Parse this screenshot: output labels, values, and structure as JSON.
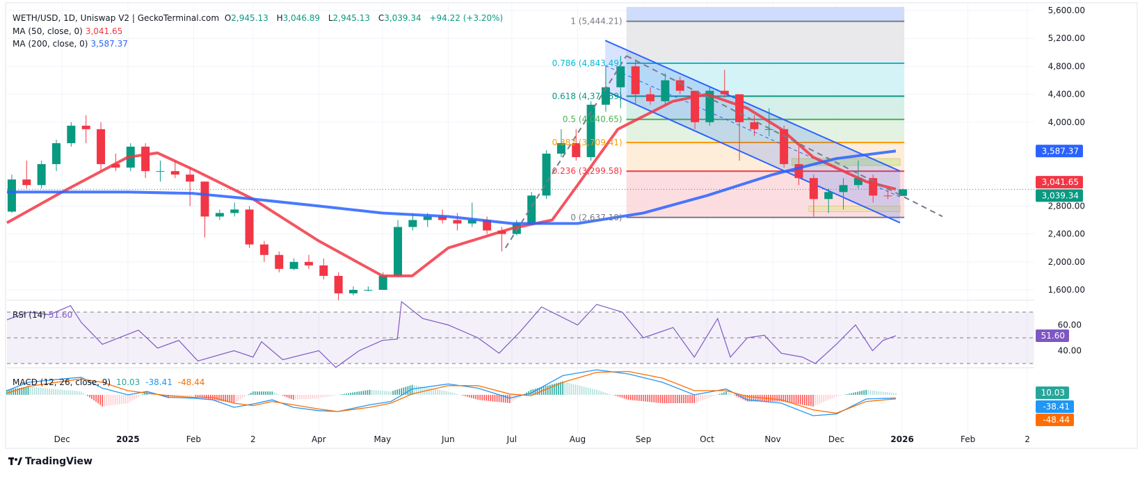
{
  "header": {
    "symbol": "WETH/USD, 1D, Uniswap V2 | GeckoTerminal.com",
    "o_label": "O",
    "o": "2,945.13",
    "h_label": "H",
    "h": "3,046.89",
    "l_label": "L",
    "l": "2,945.13",
    "c_label": "C",
    "c": "3,039.34",
    "change": "+94.22 (+3.20%)",
    "ma50_label": "MA (50, close, 0)",
    "ma50_value": "3,041.65",
    "ma200_label": "MA (200, close, 0)",
    "ma200_value": "3,587.37",
    "rsi_label": "RSI (14)",
    "rsi_value": "51.60",
    "macd_label": "MACD (12, 26, close, 9)",
    "macd_hist": "10.03",
    "macd_value": "-38.41",
    "macd_signal": "-48.44"
  },
  "branding": {
    "logo_text": "TradingView"
  },
  "colors": {
    "up": "#089981",
    "down": "#f23645",
    "ma50": "#f23645",
    "ma200": "#2962ff",
    "rsi": "#7e57c2",
    "macd": "#2196f3",
    "signal": "#ff6d00",
    "channel": "#2962ff"
  },
  "chart_data": {
    "type": "candlestick",
    "title": "WETH/USD, 1D, Uniswap V2 | GeckoTerminal.com",
    "ylim": [
      1400,
      5650
    ],
    "price_ticks": [
      "5,600.00",
      "5,200.00",
      "4,800.00",
      "4,400.00",
      "4,000.00",
      "2,800.00",
      "2,400.00",
      "2,000.00",
      "1,600.00"
    ],
    "price_tick_values": [
      5600,
      5200,
      4800,
      4400,
      4000,
      2800,
      2400,
      2000,
      1600
    ],
    "time_ticks": [
      {
        "date": "2024-12-01",
        "label": "Dec",
        "bold": false
      },
      {
        "date": "2025-01-01",
        "label": "2025",
        "bold": true
      },
      {
        "date": "2025-02-01",
        "label": "Feb",
        "bold": false
      },
      {
        "date": "2025-03-01",
        "label": "2",
        "bold": false
      },
      {
        "date": "2025-04-01",
        "label": "Apr",
        "bold": false
      },
      {
        "date": "2025-05-01",
        "label": "May",
        "bold": false
      },
      {
        "date": "2025-06-01",
        "label": "Jun",
        "bold": false
      },
      {
        "date": "2025-07-01",
        "label": "Jul",
        "bold": false
      },
      {
        "date": "2025-08-01",
        "label": "Aug",
        "bold": false
      },
      {
        "date": "2025-09-01",
        "label": "Sep",
        "bold": false
      },
      {
        "date": "2025-10-01",
        "label": "Oct",
        "bold": false
      },
      {
        "date": "2025-11-01",
        "label": "Nov",
        "bold": false
      },
      {
        "date": "2025-12-01",
        "label": "Dec",
        "bold": false
      },
      {
        "date": "2026-01-01",
        "label": "2026",
        "bold": true
      },
      {
        "date": "2026-02-01",
        "label": "Feb",
        "bold": false
      },
      {
        "date": "2026-03-01",
        "label": "2",
        "bold": false
      }
    ],
    "candles": [
      [
        "2024-11-04",
        2720,
        3250,
        2700,
        3180
      ],
      [
        "2024-11-11",
        3180,
        3450,
        3050,
        3100
      ],
      [
        "2024-11-18",
        3100,
        3450,
        3050,
        3400
      ],
      [
        "2024-11-25",
        3400,
        3750,
        3300,
        3700
      ],
      [
        "2024-12-02",
        3700,
        4000,
        3650,
        3950
      ],
      [
        "2024-12-09",
        3950,
        4100,
        3700,
        3900
      ],
      [
        "2024-12-16",
        3900,
        4000,
        3300,
        3400
      ],
      [
        "2024-12-23",
        3400,
        3550,
        3300,
        3350
      ],
      [
        "2024-12-30",
        3350,
        3700,
        3300,
        3650
      ],
      [
        "2025-01-06",
        3650,
        3700,
        3200,
        3300
      ],
      [
        "2025-01-13",
        3300,
        3450,
        3150,
        3300
      ],
      [
        "2025-01-20",
        3300,
        3450,
        3200,
        3250
      ],
      [
        "2025-01-27",
        3250,
        3350,
        2800,
        3150
      ],
      [
        "2025-02-03",
        3150,
        3150,
        2350,
        2650
      ],
      [
        "2025-02-10",
        2650,
        2750,
        2600,
        2700
      ],
      [
        "2025-02-17",
        2700,
        2850,
        2650,
        2750
      ],
      [
        "2025-02-24",
        2750,
        2800,
        2200,
        2250
      ],
      [
        "2025-03-03",
        2250,
        2300,
        2000,
        2100
      ],
      [
        "2025-03-10",
        2100,
        2150,
        1850,
        1900
      ],
      [
        "2025-03-17",
        1900,
        2050,
        1880,
        2000
      ],
      [
        "2025-03-24",
        2000,
        2100,
        1900,
        1950
      ],
      [
        "2025-03-31",
        1950,
        2050,
        1750,
        1800
      ],
      [
        "2025-04-07",
        1800,
        1850,
        1450,
        1550
      ],
      [
        "2025-04-14",
        1550,
        1650,
        1520,
        1600
      ],
      [
        "2025-04-21",
        1600,
        1650,
        1580,
        1600
      ],
      [
        "2025-04-28",
        1600,
        1850,
        1600,
        1800
      ],
      [
        "2025-05-05",
        1800,
        2600,
        1780,
        2500
      ],
      [
        "2025-05-12",
        2500,
        2700,
        2450,
        2600
      ],
      [
        "2025-05-19",
        2600,
        2700,
        2500,
        2650
      ],
      [
        "2025-05-26",
        2650,
        2750,
        2550,
        2600
      ],
      [
        "2025-06-02",
        2600,
        2700,
        2450,
        2550
      ],
      [
        "2025-06-09",
        2550,
        2850,
        2500,
        2600
      ],
      [
        "2025-06-16",
        2600,
        2650,
        2400,
        2450
      ],
      [
        "2025-06-23",
        2450,
        2500,
        2150,
        2400
      ],
      [
        "2025-06-30",
        2400,
        2600,
        2380,
        2550
      ],
      [
        "2025-07-07",
        2550,
        3000,
        2520,
        2950
      ],
      [
        "2025-07-14",
        2950,
        3600,
        2900,
        3550
      ],
      [
        "2025-07-21",
        3550,
        3900,
        3500,
        3700
      ],
      [
        "2025-07-28",
        3700,
        3900,
        3450,
        3500
      ],
      [
        "2025-08-04",
        3500,
        4300,
        3450,
        4250
      ],
      [
        "2025-08-11",
        4250,
        4800,
        4150,
        4500
      ],
      [
        "2025-08-18",
        4500,
        4950,
        4200,
        4800
      ],
      [
        "2025-08-25",
        4800,
        4900,
        4250,
        4400
      ],
      [
        "2025-09-01",
        4400,
        4500,
        4250,
        4300
      ],
      [
        "2025-09-08",
        4300,
        4700,
        4250,
        4600
      ],
      [
        "2025-09-15",
        4600,
        4650,
        4400,
        4450
      ],
      [
        "2025-09-22",
        4450,
        4450,
        3900,
        4000
      ],
      [
        "2025-09-29",
        4000,
        4500,
        3950,
        4450
      ],
      [
        "2025-10-06",
        4450,
        4750,
        4350,
        4400
      ],
      [
        "2025-10-13",
        4400,
        4400,
        3450,
        4000
      ],
      [
        "2025-10-20",
        4000,
        4100,
        3800,
        3900
      ],
      [
        "2025-10-27",
        3900,
        4200,
        3800,
        3900
      ],
      [
        "2025-11-03",
        3900,
        3950,
        3350,
        3400
      ],
      [
        "2025-11-10",
        3400,
        3650,
        3100,
        3200
      ],
      [
        "2025-11-17",
        3200,
        3250,
        2650,
        2900
      ],
      [
        "2025-11-24",
        2900,
        3050,
        2700,
        3000
      ],
      [
        "2025-12-01",
        3000,
        3200,
        2750,
        3100
      ],
      [
        "2025-12-08",
        3100,
        3450,
        3050,
        3200
      ],
      [
        "2025-12-15",
        3200,
        3250,
        2850,
        2950
      ],
      [
        "2025-12-22",
        2950,
        3050,
        2900,
        2945
      ],
      [
        "2025-12-29",
        2945.13,
        3046.89,
        2945.13,
        3039.34
      ]
    ],
    "last_price": 3039.34,
    "series": [
      {
        "name": "MA (50, close, 0)",
        "points": [
          [
            "2024-11-05",
            2560
          ],
          [
            "2024-12-01",
            3000
          ],
          [
            "2025-01-01",
            3500
          ],
          [
            "2025-01-15",
            3560
          ],
          [
            "2025-02-01",
            3320
          ],
          [
            "2025-03-01",
            2900
          ],
          [
            "2025-04-01",
            2300
          ],
          [
            "2025-05-01",
            1800
          ],
          [
            "2025-05-15",
            1800
          ],
          [
            "2025-06-01",
            2200
          ],
          [
            "2025-07-01",
            2480
          ],
          [
            "2025-07-20",
            2600
          ],
          [
            "2025-08-01",
            3100
          ],
          [
            "2025-08-20",
            3900
          ],
          [
            "2025-09-15",
            4300
          ],
          [
            "2025-10-01",
            4400
          ],
          [
            "2025-10-20",
            4200
          ],
          [
            "2025-11-05",
            3900
          ],
          [
            "2025-11-20",
            3500
          ],
          [
            "2025-12-15",
            3150
          ],
          [
            "2025-12-29",
            3041.65
          ]
        ]
      },
      {
        "name": "MA (200, close, 0)",
        "points": [
          [
            "2024-11-05",
            3000
          ],
          [
            "2025-01-01",
            3000
          ],
          [
            "2025-02-01",
            2980
          ],
          [
            "2025-03-01",
            2900
          ],
          [
            "2025-04-01",
            2800
          ],
          [
            "2025-05-01",
            2700
          ],
          [
            "2025-06-01",
            2650
          ],
          [
            "2025-07-01",
            2550
          ],
          [
            "2025-08-01",
            2550
          ],
          [
            "2025-09-01",
            2700
          ],
          [
            "2025-10-01",
            2950
          ],
          [
            "2025-11-01",
            3250
          ],
          [
            "2025-12-01",
            3480
          ],
          [
            "2025-12-29",
            3587.37
          ]
        ]
      }
    ],
    "fibonacci": {
      "start_date": "2025-08-24",
      "end_date": "2026-01-02",
      "levels": [
        {
          "ratio": "1",
          "price": 5444.21,
          "label": "1 (5,444.21)",
          "color": "#787b86",
          "fill": "#e3e3e6"
        },
        {
          "ratio": "0.786",
          "price": 4843.49,
          "label": "0.786 (4,843.49)",
          "color": "#00bcd4",
          "fill": "#c9f0f5"
        },
        {
          "ratio": "0.618",
          "price": 4371.89,
          "label": "0.618 (4,371.89)",
          "color": "#089981",
          "fill": "#cdebe3"
        },
        {
          "ratio": "0.5",
          "price": 4040.65,
          "label": "0.5 (4,040.65)",
          "color": "#4caf50",
          "fill": "#dcefd9"
        },
        {
          "ratio": "0.382",
          "price": 3709.41,
          "label": "0.382 (3,709.41)",
          "color": "#ff9800",
          "fill": "#fde9cf"
        },
        {
          "ratio": "0.236",
          "price": 3299.58,
          "label": "0.236 (3,299.58)",
          "color": "#f23645",
          "fill": "#fbd6da"
        },
        {
          "ratio": "0",
          "price": 2637.1,
          "label": "0 (2,637.10)",
          "color": "#787b86",
          "fill": null
        }
      ],
      "top_fill": "#cfdcfb"
    },
    "channel": {
      "upper": [
        [
          "2025-08-14",
          5170
        ],
        [
          "2025-12-31",
          3300
        ]
      ],
      "lower": [
        [
          "2025-08-14",
          4450
        ],
        [
          "2025-12-31",
          2560
        ]
      ]
    },
    "trend_lines": [
      [
        [
          "2025-06-28",
          2200
        ],
        [
          "2025-08-24",
          4950
        ]
      ],
      [
        [
          "2025-08-24",
          4950
        ],
        [
          "2026-01-20",
          2650
        ]
      ]
    ],
    "zones": [
      {
        "from": "2025-11-10",
        "to": "2025-12-31",
        "low": 3380,
        "high": 3480,
        "color": "#d9e8a8"
      },
      {
        "from": "2025-11-18",
        "to": "2025-12-31",
        "low": 2720,
        "high": 2800,
        "color": "#f0e2b0"
      }
    ],
    "rsi": {
      "ylim": [
        20,
        80
      ],
      "ticks": [
        "60.00",
        "40.00"
      ],
      "tick_values": [
        60,
        40
      ],
      "bands": [
        70,
        50,
        30
      ],
      "last": "51.60",
      "points": [
        [
          "2024-11-05",
          64
        ],
        [
          "2024-11-15",
          70
        ],
        [
          "2024-11-25",
          68
        ],
        [
          "2024-12-05",
          75
        ],
        [
          "2024-12-10",
          62
        ],
        [
          "2024-12-20",
          45
        ],
        [
          "2025-01-06",
          56
        ],
        [
          "2025-01-15",
          42
        ],
        [
          "2025-01-25",
          48
        ],
        [
          "2025-02-03",
          32
        ],
        [
          "2025-02-20",
          40
        ],
        [
          "2025-03-01",
          35
        ],
        [
          "2025-03-05",
          47
        ],
        [
          "2025-03-15",
          33
        ],
        [
          "2025-04-01",
          40
        ],
        [
          "2025-04-09",
          27
        ],
        [
          "2025-04-20",
          40
        ],
        [
          "2025-05-01",
          48
        ],
        [
          "2025-05-08",
          49
        ],
        [
          "2025-05-10",
          82
        ],
        [
          "2025-05-20",
          65
        ],
        [
          "2025-06-01",
          60
        ],
        [
          "2025-06-15",
          50
        ],
        [
          "2025-06-25",
          38
        ],
        [
          "2025-07-05",
          55
        ],
        [
          "2025-07-15",
          74
        ],
        [
          "2025-08-01",
          60
        ],
        [
          "2025-08-10",
          76
        ],
        [
          "2025-08-22",
          70
        ],
        [
          "2025-09-01",
          50
        ],
        [
          "2025-09-15",
          58
        ],
        [
          "2025-09-25",
          35
        ],
        [
          "2025-10-06",
          65
        ],
        [
          "2025-10-12",
          35
        ],
        [
          "2025-10-20",
          50
        ],
        [
          "2025-10-28",
          52
        ],
        [
          "2025-11-05",
          38
        ],
        [
          "2025-11-15",
          35
        ],
        [
          "2025-11-21",
          30
        ],
        [
          "2025-12-01",
          45
        ],
        [
          "2025-12-10",
          60
        ],
        [
          "2025-12-18",
          40
        ],
        [
          "2025-12-23",
          48
        ],
        [
          "2025-12-29",
          51.6
        ]
      ]
    },
    "macd": {
      "last_hist": "10.03",
      "last_macd": "-38.41",
      "last_signal": "-48.44",
      "points": [
        [
          "2024-11-05",
          50,
          20
        ],
        [
          "2024-11-15",
          150,
          100
        ],
        [
          "2024-12-01",
          190,
          160
        ],
        [
          "2024-12-10",
          210,
          190
        ],
        [
          "2024-12-20",
          80,
          150
        ],
        [
          "2025-01-01",
          0,
          50
        ],
        [
          "2025-01-10",
          40,
          20
        ],
        [
          "2025-01-20",
          -30,
          -10
        ],
        [
          "2025-02-01",
          -40,
          -30
        ],
        [
          "2025-02-10",
          -60,
          -30
        ],
        [
          "2025-02-20",
          -150,
          -100
        ],
        [
          "2025-03-01",
          -110,
          -130
        ],
        [
          "2025-03-10",
          -60,
          -80
        ],
        [
          "2025-03-20",
          -150,
          -120
        ],
        [
          "2025-04-01",
          -190,
          -170
        ],
        [
          "2025-04-10",
          -200,
          -200
        ],
        [
          "2025-04-25",
          -120,
          -150
        ],
        [
          "2025-05-05",
          -80,
          -100
        ],
        [
          "2025-05-15",
          70,
          10
        ],
        [
          "2025-06-01",
          130,
          110
        ],
        [
          "2025-06-15",
          80,
          110
        ],
        [
          "2025-06-30",
          -40,
          10
        ],
        [
          "2025-07-10",
          20,
          -10
        ],
        [
          "2025-07-25",
          230,
          150
        ],
        [
          "2025-08-10",
          300,
          270
        ],
        [
          "2025-08-25",
          250,
          280
        ],
        [
          "2025-09-10",
          150,
          200
        ],
        [
          "2025-09-25",
          0,
          50
        ],
        [
          "2025-10-10",
          70,
          50
        ],
        [
          "2025-10-20",
          -60,
          -20
        ],
        [
          "2025-11-05",
          -100,
          -60
        ],
        [
          "2025-11-20",
          -250,
          -180
        ],
        [
          "2025-12-01",
          -230,
          -220
        ],
        [
          "2025-12-15",
          -50,
          -80
        ],
        [
          "2025-12-29",
          -38.41,
          -48.44
        ]
      ]
    }
  }
}
